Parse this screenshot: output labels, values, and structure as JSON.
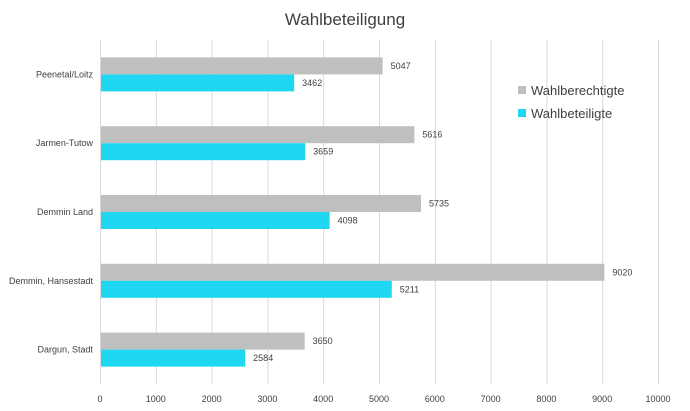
{
  "chart_data": {
    "type": "bar",
    "orientation": "horizontal",
    "title": "Wahlbeteiligung",
    "categories": [
      "Peenetal/Loitz",
      "Jarmen-Tutow",
      "Demmin Land",
      "Demmin, Hansestadt",
      "Dargun, Stadt"
    ],
    "series": [
      {
        "name": "Wahlberechtigte",
        "color": "#bfbfbf",
        "values": [
          5047,
          5616,
          5735,
          9020,
          3650
        ]
      },
      {
        "name": "Wahlbeteiligte",
        "color": "#1fd7f0",
        "values": [
          3462,
          3659,
          4098,
          5211,
          2584
        ]
      }
    ],
    "xlim": [
      0,
      10000
    ],
    "xticks": [
      0,
      1000,
      2000,
      3000,
      4000,
      5000,
      6000,
      7000,
      8000,
      9000,
      10000
    ],
    "grid": true,
    "legend_position": "right",
    "data_labels": true
  }
}
